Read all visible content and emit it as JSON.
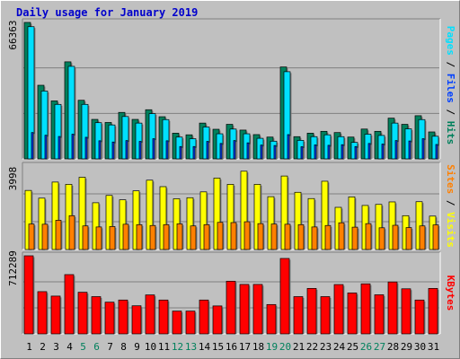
{
  "title": "Daily usage for January 2019",
  "colors": {
    "background": "#c0c0c0",
    "title": "#0000cc",
    "hits": "#00805c",
    "files": "#0040ff",
    "pages": "#00e0ff",
    "visits": "#ffff00",
    "sites": "#ff8000",
    "kbytes": "#ff0000",
    "weekday_label": "#000000",
    "weekend_label": "#00805c"
  },
  "chart_data": [
    {
      "type": "bar",
      "panel": "hits-files-pages",
      "ymax_label": "66363",
      "ylim": [
        0,
        66363
      ],
      "right_label": {
        "parts": [
          {
            "text": "Pages",
            "color": "#00e0ff"
          },
          {
            "text": " / ",
            "color": "#000000"
          },
          {
            "text": "Files",
            "color": "#0040ff"
          },
          {
            "text": " / ",
            "color": "#000000"
          },
          {
            "text": "Hits",
            "color": "#00805c"
          }
        ]
      },
      "categories": [
        "1",
        "2",
        "3",
        "4",
        "5",
        "6",
        "7",
        "8",
        "9",
        "10",
        "11",
        "12",
        "13",
        "14",
        "15",
        "16",
        "17",
        "18",
        "19",
        "20",
        "21",
        "22",
        "23",
        "24",
        "25",
        "26",
        "27",
        "28",
        "29",
        "30",
        "31"
      ],
      "series": [
        {
          "name": "Hits",
          "values": [
            66363,
            35800,
            28200,
            47200,
            28500,
            19200,
            17700,
            22600,
            19200,
            23900,
            20500,
            12500,
            11700,
            17400,
            14400,
            16800,
            14000,
            11800,
            10600,
            44700,
            10800,
            12500,
            13400,
            12800,
            10600,
            14500,
            13400,
            19800,
            16800,
            21000,
            13100
          ]
        },
        {
          "name": "Pages",
          "values": [
            64300,
            33000,
            26500,
            45000,
            26500,
            17600,
            16500,
            20600,
            17400,
            22000,
            19100,
            10600,
            9800,
            15500,
            12200,
            14500,
            12200,
            10000,
            8600,
            42400,
            9000,
            10800,
            11700,
            10800,
            8000,
            12000,
            11400,
            17400,
            14600,
            19100,
            11000
          ]
        },
        {
          "name": "Files",
          "values": [
            12800,
            11500,
            10900,
            12000,
            10500,
            8800,
            8200,
            8900,
            8500,
            9800,
            8800,
            6000,
            6000,
            8500,
            7500,
            8900,
            7800,
            6700,
            6500,
            11800,
            5900,
            6800,
            6600,
            6900,
            6000,
            7500,
            7200,
            8900,
            8700,
            9800,
            7000
          ]
        }
      ]
    },
    {
      "type": "bar",
      "panel": "visits-sites",
      "ymax_label": "3998",
      "ylim": [
        0,
        3998
      ],
      "right_label": {
        "parts": [
          {
            "text": "Sites",
            "color": "#ff8000"
          },
          {
            "text": " / ",
            "color": "#000000"
          },
          {
            "text": "Visits",
            "color": "#ffff00"
          }
        ]
      },
      "categories": [
        "1",
        "2",
        "3",
        "4",
        "5",
        "6",
        "7",
        "8",
        "9",
        "10",
        "11",
        "12",
        "13",
        "14",
        "15",
        "16",
        "17",
        "18",
        "19",
        "20",
        "21",
        "22",
        "23",
        "24",
        "25",
        "26",
        "27",
        "28",
        "29",
        "30",
        "31"
      ],
      "series": [
        {
          "name": "Visits",
          "values": [
            2830,
            2460,
            3230,
            3120,
            3460,
            2240,
            2590,
            2380,
            2810,
            3320,
            3010,
            2430,
            2480,
            2760,
            3420,
            3120,
            3750,
            3120,
            2530,
            3520,
            2740,
            2440,
            3270,
            2020,
            2520,
            2110,
            2160,
            2280,
            1620,
            2290,
            1600
          ]
        },
        {
          "name": "Sites",
          "values": [
            1220,
            1210,
            1400,
            1620,
            1130,
            1080,
            1100,
            1210,
            1190,
            1150,
            1190,
            1230,
            1130,
            1190,
            1300,
            1290,
            1330,
            1240,
            1220,
            1210,
            1190,
            1080,
            1150,
            1280,
            1070,
            1240,
            1040,
            1160,
            1050,
            1130,
            1180
          ]
        }
      ]
    },
    {
      "type": "bar",
      "panel": "kbytes",
      "ymax_label": "712289",
      "ylim": [
        0,
        712289
      ],
      "right_label": {
        "parts": [
          {
            "text": "KBytes",
            "color": "#ff0000"
          }
        ]
      },
      "categories": [
        "1",
        "2",
        "3",
        "4",
        "5",
        "6",
        "7",
        "8",
        "9",
        "10",
        "11",
        "12",
        "13",
        "14",
        "15",
        "16",
        "17",
        "18",
        "19",
        "20",
        "21",
        "22",
        "23",
        "24",
        "25",
        "26",
        "27",
        "28",
        "29",
        "30",
        "31"
      ],
      "series": [
        {
          "name": "KBytes",
          "values": [
            712289,
            385300,
            344700,
            540600,
            379600,
            339800,
            289200,
            308800,
            256300,
            355400,
            308800,
            207800,
            207800,
            308800,
            254900,
            480400,
            451000,
            451000,
            267600,
            688000,
            339800,
            414700,
            339800,
            450000,
            373400,
            456600,
            356700,
            473500,
            411200,
            308800,
            414700
          ]
        }
      ]
    }
  ],
  "x_labels": [
    {
      "text": "1",
      "weekend": false
    },
    {
      "text": "2",
      "weekend": false
    },
    {
      "text": "3",
      "weekend": false
    },
    {
      "text": "4",
      "weekend": false
    },
    {
      "text": "5",
      "weekend": true
    },
    {
      "text": "6",
      "weekend": true
    },
    {
      "text": "7",
      "weekend": false
    },
    {
      "text": "8",
      "weekend": false
    },
    {
      "text": "9",
      "weekend": false
    },
    {
      "text": "10",
      "weekend": false
    },
    {
      "text": "11",
      "weekend": false
    },
    {
      "text": "12",
      "weekend": true
    },
    {
      "text": "13",
      "weekend": true
    },
    {
      "text": "14",
      "weekend": false
    },
    {
      "text": "15",
      "weekend": false
    },
    {
      "text": "16",
      "weekend": false
    },
    {
      "text": "17",
      "weekend": false
    },
    {
      "text": "18",
      "weekend": false
    },
    {
      "text": "19",
      "weekend": true
    },
    {
      "text": "20",
      "weekend": true
    },
    {
      "text": "21",
      "weekend": false
    },
    {
      "text": "22",
      "weekend": false
    },
    {
      "text": "23",
      "weekend": false
    },
    {
      "text": "24",
      "weekend": false
    },
    {
      "text": "25",
      "weekend": false
    },
    {
      "text": "26",
      "weekend": true
    },
    {
      "text": "27",
      "weekend": true
    },
    {
      "text": "28",
      "weekend": false
    },
    {
      "text": "29",
      "weekend": false
    },
    {
      "text": "30",
      "weekend": false
    },
    {
      "text": "31",
      "weekend": false
    }
  ]
}
